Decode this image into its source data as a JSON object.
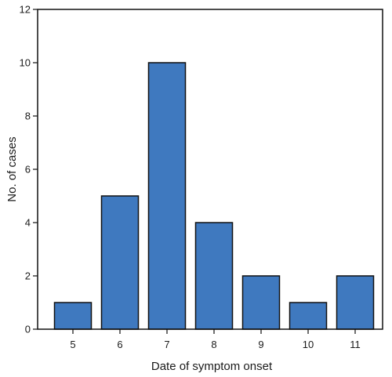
{
  "chart_data": {
    "type": "bar",
    "title": "",
    "xlabel": "Date of symptom onset",
    "ylabel": "No. of cases",
    "categories": [
      "5",
      "6",
      "7",
      "8",
      "9",
      "10",
      "11"
    ],
    "values": [
      1,
      5,
      10,
      4,
      2,
      1,
      2
    ],
    "ylim": [
      0,
      12
    ],
    "yticks": [
      0,
      2,
      4,
      6,
      8,
      10,
      12
    ],
    "grid": false,
    "bar_color": "#3f79bf",
    "bar_edge_color": "#111111"
  }
}
